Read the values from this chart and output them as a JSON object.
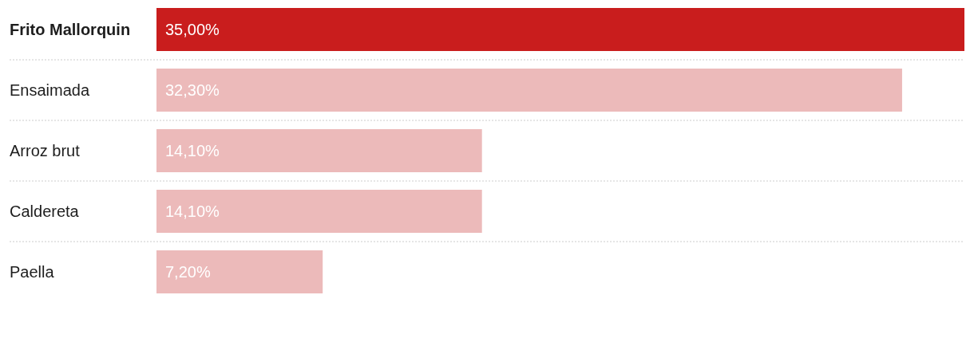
{
  "chart_data": {
    "type": "bar",
    "orientation": "horizontal",
    "categories": [
      "Frito Mallorquin",
      "Ensaimada",
      "Arroz brut",
      "Caldereta",
      "Paella"
    ],
    "values": [
      35,
      32.3,
      14.1,
      14.1,
      7.2
    ],
    "value_labels": [
      "35,00%",
      "32,30%",
      "14,10%",
      "14,10%",
      "7,20%"
    ],
    "colors": [
      "#c91d1d",
      "#ecbaba",
      "#ecbaba",
      "#ecbaba",
      "#ecbaba"
    ],
    "xlim": [
      0,
      35
    ]
  }
}
